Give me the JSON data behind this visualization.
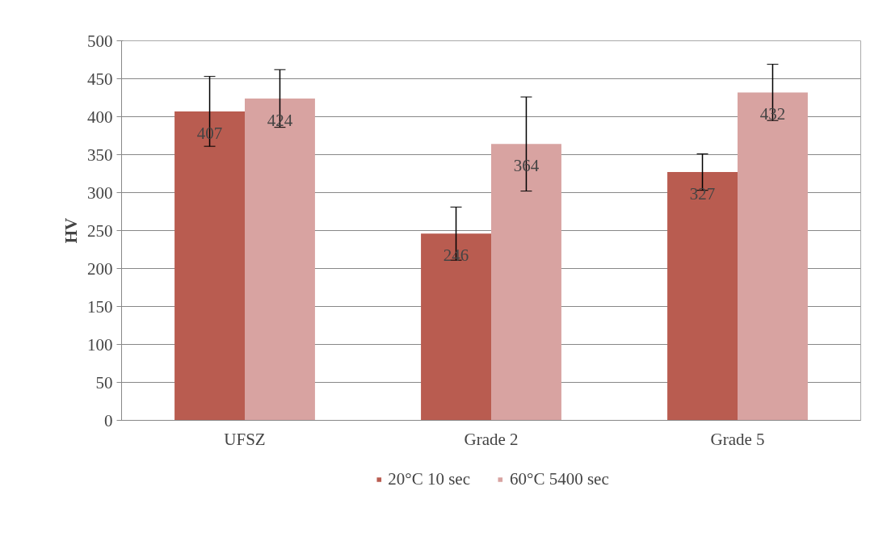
{
  "chart_data": {
    "type": "bar",
    "ylabel": "HV",
    "categories": [
      "UFSZ",
      "Grade 2",
      "Grade 5"
    ],
    "series": [
      {
        "name": "20°C 10 sec",
        "color": "#b95c50",
        "values": [
          407,
          246,
          327
        ],
        "errors": [
          46,
          35,
          24
        ]
      },
      {
        "name": "60°C 5400 sec",
        "color": "#d8a3a1",
        "values": [
          424,
          364,
          432
        ],
        "errors": [
          38,
          62,
          37
        ]
      }
    ],
    "ylim": [
      0,
      500
    ],
    "yticks": [
      0,
      50,
      100,
      150,
      200,
      250,
      300,
      350,
      400,
      450,
      500
    ],
    "grid": "y",
    "legend": "bottom",
    "data_labels": true
  }
}
